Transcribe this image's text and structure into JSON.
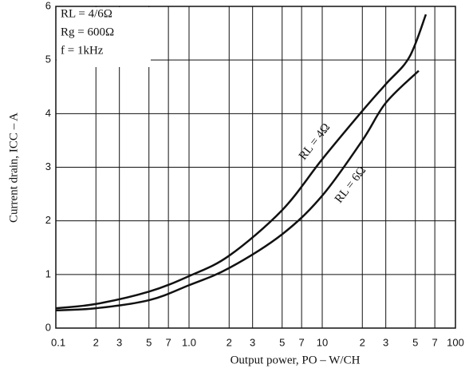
{
  "chart_data": {
    "type": "line",
    "x_label": "Output power, PO – W/CH",
    "y_label": "Current drain, ICC – A",
    "xscale": "log",
    "xlim": [
      0.1,
      100
    ],
    "xticks": [
      0.1,
      {
        "value": 0.2,
        "label": "2"
      },
      {
        "value": 0.3,
        "label": "3"
      },
      {
        "value": 0.5,
        "label": "5"
      },
      {
        "value": 0.7,
        "label": "7"
      },
      {
        "value": 1,
        "label": "1.0"
      },
      {
        "value": 2,
        "label": "2"
      },
      {
        "value": 3,
        "label": "3"
      },
      {
        "value": 5,
        "label": "5"
      },
      {
        "value": 7,
        "label": "7"
      },
      10,
      {
        "value": 20,
        "label": "2"
      },
      {
        "value": 30,
        "label": "3"
      },
      {
        "value": 50,
        "label": "5"
      },
      {
        "value": 70,
        "label": "7"
      },
      100
    ],
    "ylim": [
      0,
      6
    ],
    "yticks": [
      0,
      1,
      2,
      3,
      4,
      5,
      6
    ],
    "grid": true,
    "conditions": [
      "RL = 4/6Ω",
      "Rg = 600Ω",
      "f = 1kHz"
    ],
    "series": [
      {
        "name": "RL = 4Ω",
        "color": "#111111",
        "x": [
          0.1,
          0.2,
          0.5,
          1,
          2,
          5,
          10,
          20,
          30,
          45,
          60
        ],
        "values": [
          0.37,
          0.45,
          0.68,
          0.97,
          1.35,
          2.2,
          3.15,
          4.05,
          4.55,
          5.05,
          5.85
        ]
      },
      {
        "name": "RL = 6Ω",
        "color": "#111111",
        "x": [
          0.1,
          0.2,
          0.5,
          1,
          2,
          5,
          10,
          20,
          30,
          53
        ],
        "values": [
          0.33,
          0.37,
          0.52,
          0.8,
          1.12,
          1.75,
          2.47,
          3.5,
          4.2,
          4.8
        ]
      }
    ]
  }
}
